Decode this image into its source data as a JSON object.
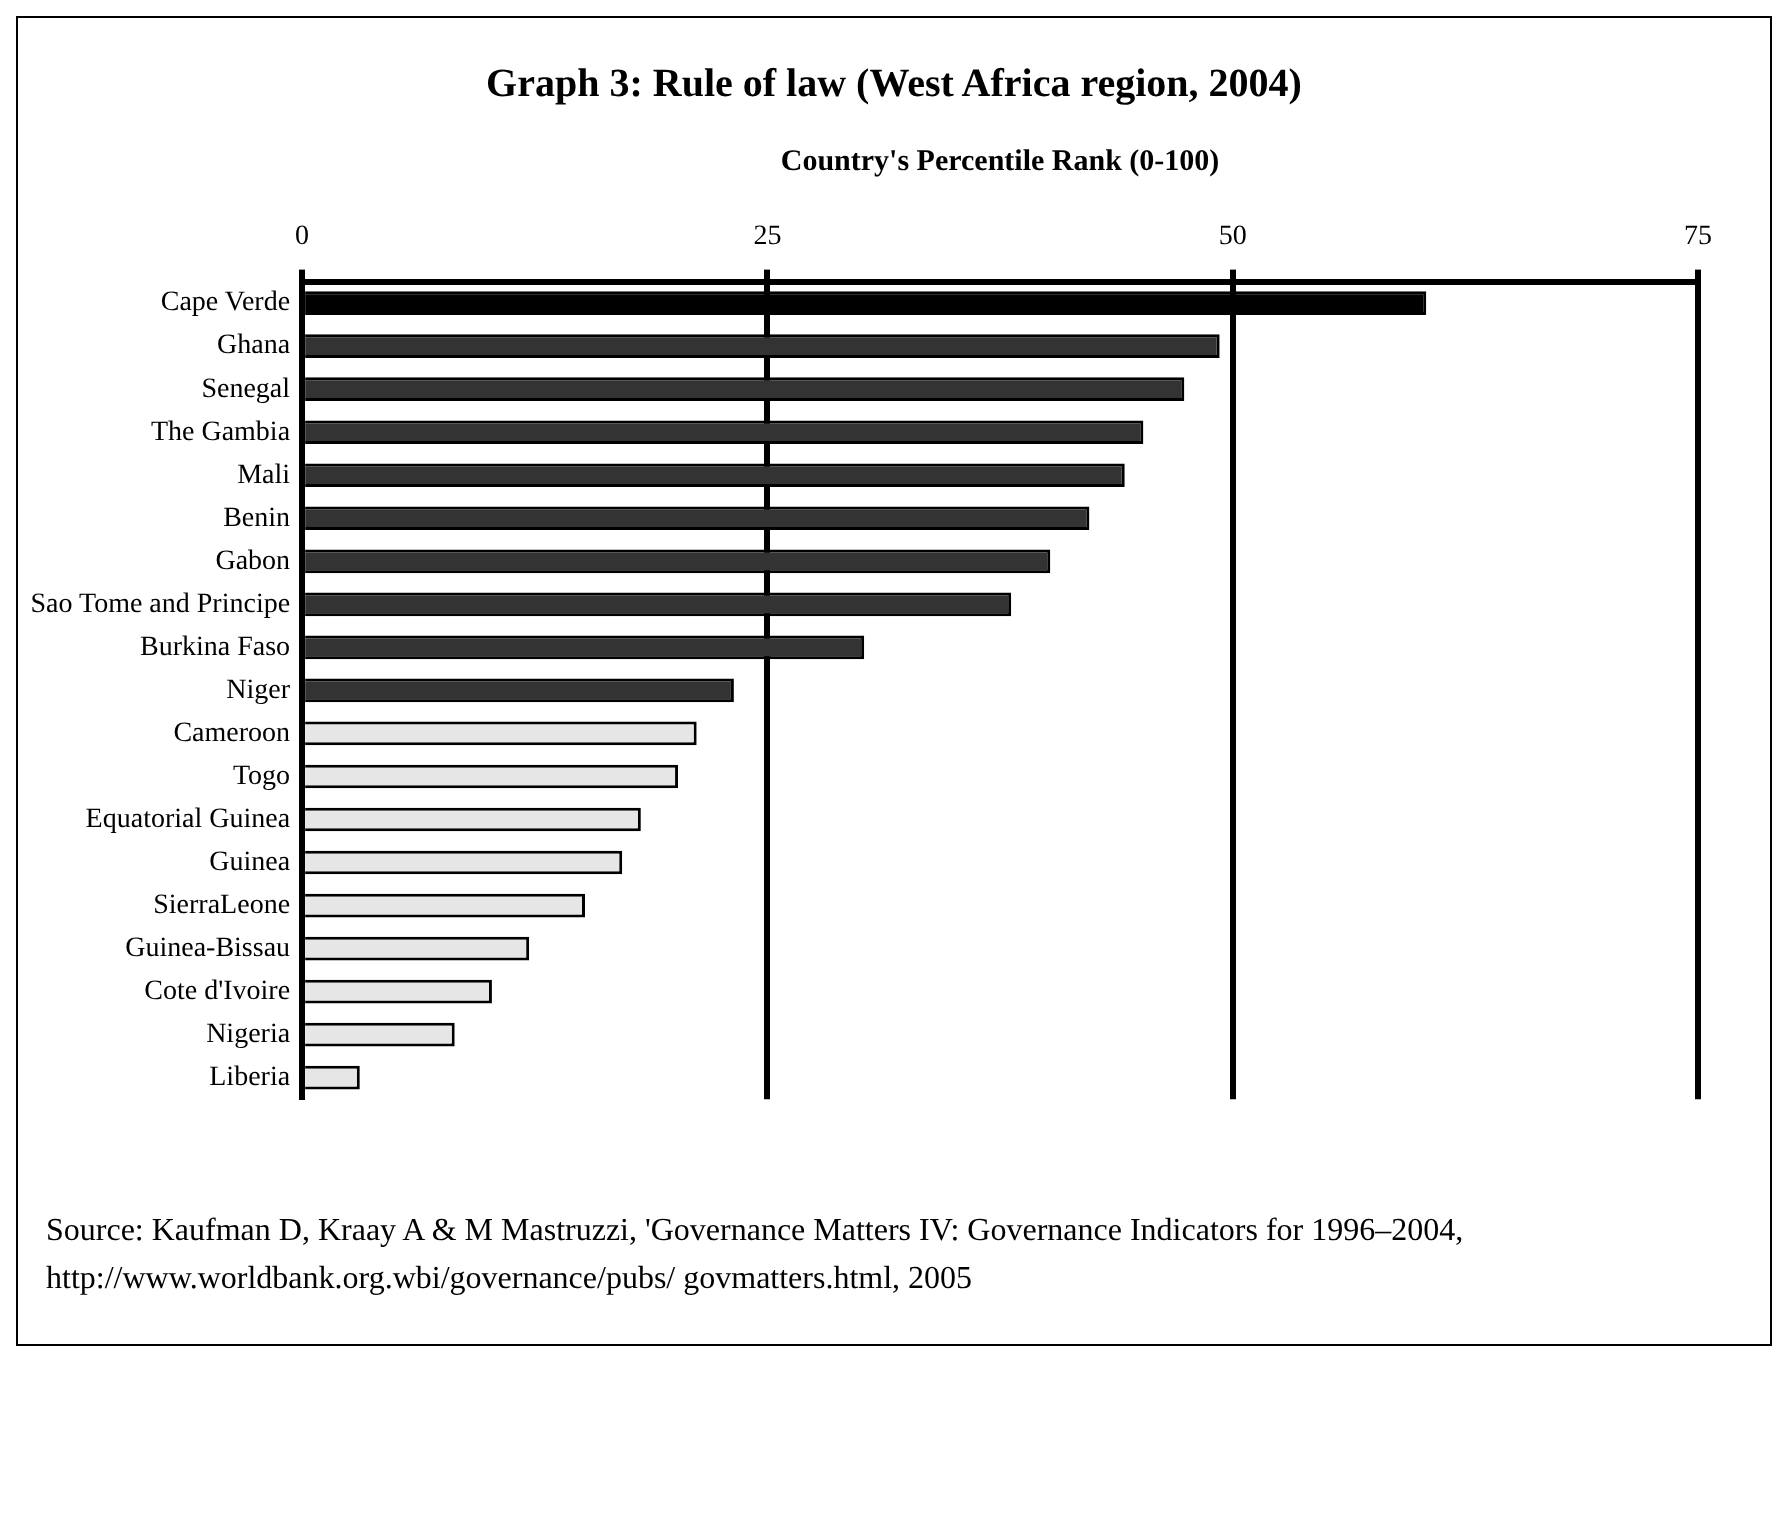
{
  "chart_data": {
    "type": "bar",
    "orientation": "horizontal",
    "title": "Graph 3: Rule of law (West Africa region, 2004)",
    "xlabel": "Country's Percentile Rank (0-100)",
    "categories": [
      "Cape Verde",
      "Ghana",
      "Senegal",
      "The Gambia",
      "Mali",
      "Benin",
      "Gabon",
      "Sao Tome and Principe",
      "Burkina Faso",
      "Niger",
      "Cameroon",
      "Togo",
      "Equatorial Guinea",
      "Guinea",
      "SierraLeone",
      "Guinea-Bissau",
      "Cote d'Ivoire",
      "Nigeria",
      "Liberia"
    ],
    "values": [
      60.4,
      49.3,
      47.4,
      45.2,
      44.2,
      42.3,
      40.2,
      38.1,
      30.2,
      23.2,
      21.2,
      20.2,
      18.2,
      17.2,
      15.2,
      12.2,
      10.2,
      8.2,
      3.1
    ],
    "colors": [
      "#000000",
      "#333333",
      "#333333",
      "#333333",
      "#333333",
      "#333333",
      "#333333",
      "#333333",
      "#333333",
      "#333333",
      "#e6e6e6",
      "#e6e6e6",
      "#e6e6e6",
      "#e6e6e6",
      "#e6e6e6",
      "#e6e6e6",
      "#e6e6e6",
      "#e6e6e6",
      "#e6e6e6"
    ],
    "xlim": [
      0,
      75
    ],
    "xticks": [
      0,
      25,
      50,
      75
    ],
    "grid": "x",
    "legend": false,
    "annotations": [
      "Source: Kaufman D, Kraay A & M Mastruzzi, 'Governance Matters IV: Governance Indicators for 1996–2004, http://www.worldbank.org.wbi/governance/pubs/ govmatters.html, 2005"
    ]
  }
}
